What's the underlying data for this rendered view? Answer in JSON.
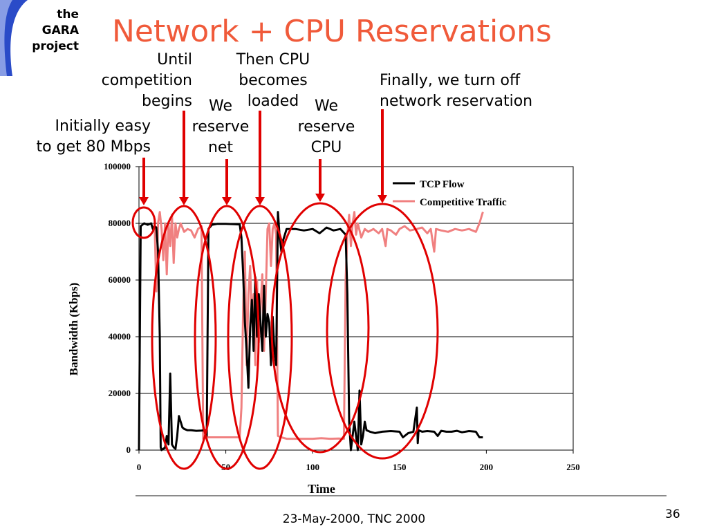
{
  "logo": {
    "lines": [
      "the",
      "GARA",
      "project"
    ]
  },
  "slide": {
    "title": "Network + CPU Reservations",
    "footer": "23-May-2000, TNC 2000",
    "page_number": "36"
  },
  "annotations": {
    "initial": [
      "Initially easy",
      "to get 80 Mbps"
    ],
    "until": [
      "Until",
      "competition",
      "begins"
    ],
    "reserve_net": [
      "We",
      "reserve",
      "net"
    ],
    "cpu_loaded": [
      "Then CPU",
      "becomes",
      "loaded"
    ],
    "reserve_cpu": [
      "We",
      "reserve",
      "CPU"
    ],
    "finally": [
      "Finally, we turn off",
      "network reservation"
    ]
  },
  "colors": {
    "title": "#f05a3a",
    "highlight": "#e00000",
    "tcp": "#000000",
    "competitive": "#f08080"
  },
  "chart_data": {
    "type": "line",
    "xlabel": "Time",
    "ylabel": "Bandwidth (Kbps)",
    "xlim": [
      0,
      250
    ],
    "ylim": [
      0,
      100000
    ],
    "xticks": [
      0,
      50,
      100,
      150,
      200,
      250
    ],
    "yticks": [
      0,
      20000,
      40000,
      60000,
      80000,
      100000
    ],
    "xtick_labels": [
      "0",
      "50",
      "100",
      "150",
      "200",
      "250"
    ],
    "ytick_labels": [
      "0",
      "20000",
      "40000",
      "60000",
      "80000",
      "100000"
    ],
    "grid": "horizontal",
    "legend_position": "top-right",
    "series": [
      {
        "name": "TCP Flow",
        "color": "#000000",
        "points": [
          [
            0,
            0
          ],
          [
            1,
            79000
          ],
          [
            3,
            80000
          ],
          [
            5,
            79500
          ],
          [
            7,
            80000
          ],
          [
            8,
            78000
          ],
          [
            9,
            79000
          ],
          [
            10,
            78500
          ],
          [
            11,
            70000
          ],
          [
            12,
            40000
          ],
          [
            12.5,
            1000
          ],
          [
            13,
            0
          ],
          [
            14,
            500
          ],
          [
            15,
            800
          ],
          [
            16,
            5000
          ],
          [
            17,
            2000
          ],
          [
            18,
            27000
          ],
          [
            19,
            2000
          ],
          [
            20,
            1000
          ],
          [
            21,
            500
          ],
          [
            22,
            5000
          ],
          [
            23,
            12000
          ],
          [
            24,
            10000
          ],
          [
            25,
            8000
          ],
          [
            26,
            7500
          ],
          [
            28,
            7000
          ],
          [
            30,
            7000
          ],
          [
            33,
            6800
          ],
          [
            36,
            6900
          ],
          [
            38,
            7000
          ],
          [
            39,
            5000
          ],
          [
            40,
            78000
          ],
          [
            42,
            79500
          ],
          [
            45,
            79800
          ],
          [
            50,
            79800
          ],
          [
            55,
            79700
          ],
          [
            58,
            79600
          ],
          [
            59,
            75000
          ],
          [
            60,
            62000
          ],
          [
            61,
            45000
          ],
          [
            62,
            35000
          ],
          [
            63,
            22000
          ],
          [
            64,
            43000
          ],
          [
            65,
            53000
          ],
          [
            66,
            35000
          ],
          [
            67,
            61000
          ],
          [
            68,
            40000
          ],
          [
            69,
            55000
          ],
          [
            70,
            45000
          ],
          [
            71,
            35000
          ],
          [
            72,
            58000
          ],
          [
            73,
            40000
          ],
          [
            74,
            48000
          ],
          [
            75,
            45000
          ],
          [
            76,
            30000
          ],
          [
            77,
            47000
          ],
          [
            78,
            35000
          ],
          [
            79,
            30000
          ],
          [
            80,
            84000
          ],
          [
            81,
            75000
          ],
          [
            82,
            70000
          ],
          [
            83,
            74000
          ],
          [
            84,
            76000
          ],
          [
            85,
            78000
          ],
          [
            90,
            78000
          ],
          [
            95,
            77500
          ],
          [
            100,
            78000
          ],
          [
            104,
            76500
          ],
          [
            108,
            78500
          ],
          [
            112,
            77500
          ],
          [
            116,
            78000
          ],
          [
            119,
            76000
          ],
          [
            120,
            55000
          ],
          [
            121,
            10000
          ],
          [
            122,
            0
          ],
          [
            123,
            5000
          ],
          [
            124,
            10000
          ],
          [
            126,
            0
          ],
          [
            127,
            21000
          ],
          [
            128,
            2000
          ],
          [
            129,
            5000
          ],
          [
            130,
            10000
          ],
          [
            131,
            7000
          ],
          [
            133,
            6500
          ],
          [
            136,
            6000
          ],
          [
            140,
            6500
          ],
          [
            145,
            6700
          ],
          [
            150,
            6500
          ],
          [
            152,
            4500
          ],
          [
            155,
            6000
          ],
          [
            158,
            6500
          ],
          [
            160,
            15000
          ],
          [
            160.5,
            2500
          ],
          [
            161,
            7000
          ],
          [
            163,
            6500
          ],
          [
            166,
            6700
          ],
          [
            170,
            6500
          ],
          [
            172,
            5000
          ],
          [
            174,
            6800
          ],
          [
            177,
            6500
          ],
          [
            180,
            6500
          ],
          [
            183,
            6800
          ],
          [
            186,
            6300
          ],
          [
            190,
            6700
          ],
          [
            194,
            6500
          ],
          [
            196,
            4500
          ],
          [
            198,
            4500
          ]
        ]
      },
      {
        "name": "Competitive Traffic",
        "color": "#f08080",
        "points": [
          [
            9,
            80000
          ],
          [
            10,
            56000
          ],
          [
            11,
            80000
          ],
          [
            12,
            84000
          ],
          [
            13,
            78000
          ],
          [
            14,
            67000
          ],
          [
            15,
            80000
          ],
          [
            16,
            62000
          ],
          [
            17,
            80000
          ],
          [
            18,
            72000
          ],
          [
            19,
            83000
          ],
          [
            20,
            66000
          ],
          [
            21,
            80000
          ],
          [
            22,
            75000
          ],
          [
            23,
            78000
          ],
          [
            24,
            80000
          ],
          [
            26,
            77000
          ],
          [
            28,
            78000
          ],
          [
            30,
            77500
          ],
          [
            32,
            75000
          ],
          [
            34,
            78000
          ],
          [
            36,
            79000
          ],
          [
            37,
            4000
          ],
          [
            38,
            4500
          ],
          [
            40,
            4500
          ],
          [
            45,
            4500
          ],
          [
            50,
            4500
          ],
          [
            55,
            4500
          ],
          [
            58,
            4500
          ],
          [
            59,
            15000
          ],
          [
            60,
            50000
          ],
          [
            61,
            70000
          ],
          [
            62,
            30000
          ],
          [
            63,
            55000
          ],
          [
            64,
            65000
          ],
          [
            65,
            45000
          ],
          [
            66,
            55000
          ],
          [
            67,
            30000
          ],
          [
            68,
            60000
          ],
          [
            69,
            38000
          ],
          [
            70,
            50000
          ],
          [
            71,
            62000
          ],
          [
            72,
            35000
          ],
          [
            73,
            55000
          ],
          [
            74,
            78000
          ],
          [
            75,
            80000
          ],
          [
            76,
            65000
          ],
          [
            77,
            78000
          ],
          [
            78,
            80000
          ],
          [
            79,
            76000
          ],
          [
            80,
            5000
          ],
          [
            82,
            4500
          ],
          [
            85,
            4000
          ],
          [
            90,
            4000
          ],
          [
            95,
            4000
          ],
          [
            100,
            4000
          ],
          [
            105,
            4200
          ],
          [
            110,
            4000
          ],
          [
            115,
            4100
          ],
          [
            118,
            4000
          ],
          [
            119,
            60000
          ],
          [
            120,
            76000
          ],
          [
            121,
            83000
          ],
          [
            122,
            72000
          ],
          [
            123,
            80000
          ],
          [
            124,
            84000
          ],
          [
            125,
            76000
          ],
          [
            126,
            80000
          ],
          [
            128,
            75000
          ],
          [
            130,
            78000
          ],
          [
            132,
            77000
          ],
          [
            135,
            78000
          ],
          [
            138,
            76500
          ],
          [
            140,
            78000
          ],
          [
            142,
            72000
          ],
          [
            143,
            78000
          ],
          [
            145,
            77500
          ],
          [
            148,
            76000
          ],
          [
            150,
            78000
          ],
          [
            153,
            79000
          ],
          [
            156,
            77500
          ],
          [
            160,
            78000
          ],
          [
            163,
            78500
          ],
          [
            166,
            76500
          ],
          [
            168,
            78000
          ],
          [
            170,
            70000
          ],
          [
            171,
            78000
          ],
          [
            174,
            77500
          ],
          [
            178,
            77000
          ],
          [
            182,
            78000
          ],
          [
            186,
            77500
          ],
          [
            190,
            78000
          ],
          [
            194,
            77000
          ],
          [
            196,
            80000
          ],
          [
            198,
            84000
          ]
        ]
      }
    ]
  }
}
